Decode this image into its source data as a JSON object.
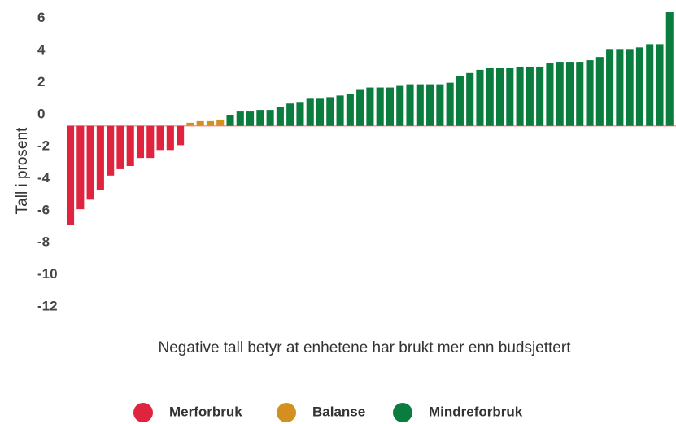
{
  "chart_data": {
    "type": "bar",
    "y_label": "Tall i prosent",
    "x_label": "Negative tall betyr at enhetene har brukt mer enn budsjettert",
    "ylim": [
      -12,
      7
    ],
    "yticks": [
      6,
      4,
      2,
      0,
      -2,
      -4,
      -6,
      -8,
      -10,
      -12
    ],
    "series": [
      {
        "name": "Merforbruk",
        "color": "#e0233e",
        "values": [
          -6.2,
          -5.2,
          -4.6,
          -4.0,
          -3.1,
          -2.7,
          -2.5,
          -2.0,
          -2.0,
          -1.5,
          -1.5,
          -1.2
        ]
      },
      {
        "name": "Balanse",
        "color": "#d4901f",
        "values": [
          0.2,
          0.3,
          0.3,
          0.4
        ]
      },
      {
        "name": "Mindreforbruk",
        "color": "#0a7d3e",
        "values": [
          0.7,
          0.9,
          0.9,
          1.0,
          1.0,
          1.2,
          1.4,
          1.5,
          1.7,
          1.7,
          1.8,
          1.9,
          2.0,
          2.3,
          2.4,
          2.4,
          2.4,
          2.5,
          2.6,
          2.6,
          2.6,
          2.6,
          2.7,
          3.1,
          3.3,
          3.5,
          3.6,
          3.6,
          3.6,
          3.7,
          3.7,
          3.7,
          3.9,
          4.0,
          4.0,
          4.0,
          4.1,
          4.3,
          4.8,
          4.8,
          4.8,
          4.9,
          5.1,
          5.1,
          7.1
        ]
      }
    ]
  }
}
